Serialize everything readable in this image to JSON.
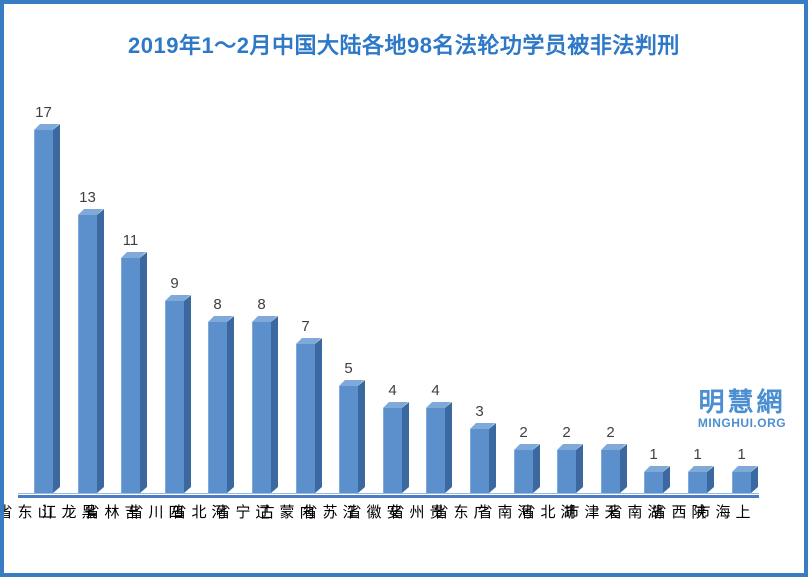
{
  "title": "2019年1～2月中国大陆各地98名法轮功学员被非法判刑",
  "watermark": {
    "cn": "明慧網",
    "en": "MINGHUI.ORG"
  },
  "colors": {
    "frame": "#3a7cc4",
    "title": "#2d78c7",
    "bar_front": "#5b90cc",
    "bar_side": "#3a689f",
    "bar_top": "#7fa9d8",
    "bar_edge": "#7fa9d8",
    "axis_main": "#4a7ec0",
    "axis_light": "#9ab9e0",
    "value_label": "#3f3f3f",
    "category_label": "#000000",
    "watermark": "#4b8fd2"
  },
  "chart_data": {
    "type": "bar",
    "title": "2019年1～2月中国大陆各地98名法轮功学员被非法判刑",
    "categories": [
      "山东省",
      "黑龙江",
      "吉林省",
      "四川省",
      "河北省",
      "辽宁省",
      "内蒙古",
      "江苏省",
      "安徽省",
      "贵州省",
      "广东省",
      "河南省",
      "湖北省",
      "天津市",
      "湖南省",
      "陕西省",
      "上海市"
    ],
    "values": [
      17,
      13,
      11,
      9,
      8,
      8,
      7,
      5,
      4,
      4,
      3,
      2,
      2,
      2,
      1,
      1,
      1
    ],
    "total": 98,
    "xlabel": "",
    "ylabel": "",
    "ylim": [
      0,
      18
    ],
    "grid": false,
    "legend": "none",
    "value_labels_shown": true,
    "bar_style": "3d-oblique",
    "category_label_orientation": "vertical"
  }
}
